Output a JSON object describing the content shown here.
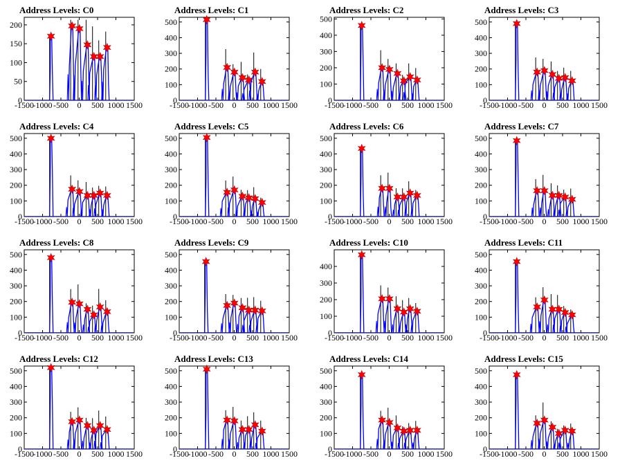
{
  "chart_data": [
    {
      "type": "histogram-peaks",
      "title": "Address Levels: C0",
      "xlim": [
        -1500,
        1500
      ],
      "ylim": [
        0,
        220
      ],
      "yticks": [
        0,
        50,
        100,
        150,
        200
      ],
      "xticks": [
        -1500,
        -1000,
        -500,
        0,
        500,
        1000,
        1500
      ],
      "peaks": [
        {
          "x": -770,
          "y": 170
        },
        {
          "x": -195,
          "y": 197
        },
        {
          "x": 5,
          "y": 190
        },
        {
          "x": 225,
          "y": 147
        },
        {
          "x": 400,
          "y": 116
        },
        {
          "x": 570,
          "y": 116
        },
        {
          "x": 760,
          "y": 140
        }
      ]
    },
    {
      "type": "histogram-peaks",
      "title": "Address Levels: C1",
      "xlim": [
        -1500,
        1500
      ],
      "ylim": [
        0,
        530
      ],
      "yticks": [
        0,
        100,
        200,
        300,
        400,
        500
      ],
      "xticks": [
        -1500,
        -1000,
        -500,
        0,
        500,
        1000,
        1500
      ],
      "peaks": [
        {
          "x": -750,
          "y": 515
        },
        {
          "x": -195,
          "y": 210
        },
        {
          "x": 5,
          "y": 180
        },
        {
          "x": 225,
          "y": 145
        },
        {
          "x": 400,
          "y": 130
        },
        {
          "x": 570,
          "y": 180
        },
        {
          "x": 760,
          "y": 120
        }
      ]
    },
    {
      "type": "histogram-peaks",
      "title": "Address Levels: C2",
      "xlim": [
        -1500,
        1500
      ],
      "ylim": [
        0,
        510
      ],
      "yticks": [
        0,
        100,
        200,
        300,
        400,
        500
      ],
      "xticks": [
        -1500,
        -1000,
        -500,
        0,
        500,
        1000,
        1500
      ],
      "peaks": [
        {
          "x": -750,
          "y": 460
        },
        {
          "x": -195,
          "y": 200
        },
        {
          "x": 5,
          "y": 190
        },
        {
          "x": 225,
          "y": 165
        },
        {
          "x": 400,
          "y": 120
        },
        {
          "x": 570,
          "y": 145
        },
        {
          "x": 760,
          "y": 125
        }
      ]
    },
    {
      "type": "histogram-peaks",
      "title": "Address Levels: C3",
      "xlim": [
        -1500,
        1500
      ],
      "ylim": [
        0,
        530
      ],
      "yticks": [
        0,
        100,
        200,
        300,
        400,
        500
      ],
      "xticks": [
        -1500,
        -1000,
        -500,
        0,
        500,
        1000,
        1500
      ],
      "peaks": [
        {
          "x": -750,
          "y": 490
        },
        {
          "x": -195,
          "y": 180
        },
        {
          "x": 5,
          "y": 190
        },
        {
          "x": 225,
          "y": 165
        },
        {
          "x": 400,
          "y": 140
        },
        {
          "x": 570,
          "y": 145
        },
        {
          "x": 760,
          "y": 125
        }
      ]
    },
    {
      "type": "histogram-peaks",
      "title": "Address Levels: C4",
      "xlim": [
        -1500,
        1500
      ],
      "ylim": [
        0,
        530
      ],
      "yticks": [
        0,
        100,
        200,
        300,
        400,
        500
      ],
      "xticks": [
        -1500,
        -1000,
        -500,
        0,
        500,
        1000,
        1500
      ],
      "peaks": [
        {
          "x": -770,
          "y": 500
        },
        {
          "x": -195,
          "y": 175
        },
        {
          "x": 5,
          "y": 160
        },
        {
          "x": 225,
          "y": 135
        },
        {
          "x": 400,
          "y": 135
        },
        {
          "x": 570,
          "y": 150
        },
        {
          "x": 760,
          "y": 135
        }
      ]
    },
    {
      "type": "histogram-peaks",
      "title": "Address Levels: C5",
      "xlim": [
        -1500,
        1500
      ],
      "ylim": [
        0,
        530
      ],
      "yticks": [
        0,
        100,
        200,
        300,
        400,
        500
      ],
      "xticks": [
        -1500,
        -1000,
        -500,
        0,
        500,
        1000,
        1500
      ],
      "peaks": [
        {
          "x": -750,
          "y": 505
        },
        {
          "x": -195,
          "y": 155
        },
        {
          "x": 5,
          "y": 170
        },
        {
          "x": 225,
          "y": 130
        },
        {
          "x": 400,
          "y": 120
        },
        {
          "x": 570,
          "y": 115
        },
        {
          "x": 760,
          "y": 90
        }
      ]
    },
    {
      "type": "histogram-peaks",
      "title": "Address Levels: C6",
      "xlim": [
        -1500,
        1500
      ],
      "ylim": [
        0,
        530
      ],
      "yticks": [
        0,
        100,
        200,
        300,
        400,
        500
      ],
      "xticks": [
        -1500,
        -1000,
        -500,
        0,
        500,
        1000,
        1500
      ],
      "peaks": [
        {
          "x": -750,
          "y": 435
        },
        {
          "x": -195,
          "y": 180
        },
        {
          "x": 5,
          "y": 180
        },
        {
          "x": 225,
          "y": 125
        },
        {
          "x": 400,
          "y": 125
        },
        {
          "x": 570,
          "y": 150
        },
        {
          "x": 760,
          "y": 135
        }
      ]
    },
    {
      "type": "histogram-peaks",
      "title": "Address Levels: C7",
      "xlim": [
        -1500,
        1500
      ],
      "ylim": [
        0,
        530
      ],
      "yticks": [
        0,
        100,
        200,
        300,
        400,
        500
      ],
      "xticks": [
        -1500,
        -1000,
        -500,
        0,
        500,
        1000,
        1500
      ],
      "peaks": [
        {
          "x": -750,
          "y": 485
        },
        {
          "x": -195,
          "y": 165
        },
        {
          "x": 5,
          "y": 165
        },
        {
          "x": 225,
          "y": 135
        },
        {
          "x": 400,
          "y": 135
        },
        {
          "x": 570,
          "y": 125
        },
        {
          "x": 760,
          "y": 110
        }
      ]
    },
    {
      "type": "histogram-peaks",
      "title": "Address Levels: C8",
      "xlim": [
        -1500,
        1500
      ],
      "ylim": [
        0,
        530
      ],
      "yticks": [
        0,
        100,
        200,
        300,
        400,
        500
      ],
      "xticks": [
        -1500,
        -1000,
        -500,
        0,
        500,
        1000,
        1500
      ],
      "peaks": [
        {
          "x": -770,
          "y": 480
        },
        {
          "x": -195,
          "y": 195
        },
        {
          "x": 5,
          "y": 185
        },
        {
          "x": 225,
          "y": 150
        },
        {
          "x": 400,
          "y": 115
        },
        {
          "x": 570,
          "y": 165
        },
        {
          "x": 760,
          "y": 135
        }
      ]
    },
    {
      "type": "histogram-peaks",
      "title": "Address Levels: C9",
      "xlim": [
        -1500,
        1500
      ],
      "ylim": [
        0,
        530
      ],
      "yticks": [
        0,
        100,
        200,
        300,
        400,
        500
      ],
      "xticks": [
        -1500,
        -1000,
        -500,
        0,
        500,
        1000,
        1500
      ],
      "peaks": [
        {
          "x": -770,
          "y": 455
        },
        {
          "x": -195,
          "y": 175
        },
        {
          "x": 5,
          "y": 190
        },
        {
          "x": 225,
          "y": 160
        },
        {
          "x": 400,
          "y": 145
        },
        {
          "x": 570,
          "y": 145
        },
        {
          "x": 760,
          "y": 140
        }
      ]
    },
    {
      "type": "histogram-peaks",
      "title": "Address Levels: C10",
      "xlim": [
        -1500,
        1500
      ],
      "ylim": [
        0,
        500
      ],
      "yticks": [
        0,
        100,
        200,
        300,
        400
      ],
      "xticks": [
        -1500,
        -1000,
        -500,
        0,
        500,
        1000,
        1500
      ],
      "peaks": [
        {
          "x": -750,
          "y": 470
        },
        {
          "x": -195,
          "y": 205
        },
        {
          "x": 5,
          "y": 205
        },
        {
          "x": 225,
          "y": 145
        },
        {
          "x": 400,
          "y": 125
        },
        {
          "x": 570,
          "y": 145
        },
        {
          "x": 760,
          "y": 130
        }
      ]
    },
    {
      "type": "histogram-peaks",
      "title": "Address Levels: C11",
      "xlim": [
        -1500,
        1500
      ],
      "ylim": [
        0,
        530
      ],
      "yticks": [
        0,
        100,
        200,
        300,
        400,
        500
      ],
      "xticks": [
        -1500,
        -1000,
        -500,
        0,
        500,
        1000,
        1500
      ],
      "peaks": [
        {
          "x": -750,
          "y": 455
        },
        {
          "x": -195,
          "y": 165
        },
        {
          "x": 5,
          "y": 210
        },
        {
          "x": 225,
          "y": 150
        },
        {
          "x": 400,
          "y": 150
        },
        {
          "x": 570,
          "y": 130
        },
        {
          "x": 760,
          "y": 115
        }
      ]
    },
    {
      "type": "histogram-peaks",
      "title": "Address Levels: C12",
      "xlim": [
        -1500,
        1500
      ],
      "ylim": [
        0,
        530
      ],
      "yticks": [
        0,
        100,
        200,
        300,
        400,
        500
      ],
      "xticks": [
        -1500,
        -1000,
        -500,
        0,
        500,
        1000,
        1500
      ],
      "peaks": [
        {
          "x": -770,
          "y": 520
        },
        {
          "x": -195,
          "y": 175
        },
        {
          "x": 5,
          "y": 185
        },
        {
          "x": 225,
          "y": 150
        },
        {
          "x": 400,
          "y": 120
        },
        {
          "x": 570,
          "y": 150
        },
        {
          "x": 760,
          "y": 125
        }
      ]
    },
    {
      "type": "histogram-peaks",
      "title": "Address Levels: C13",
      "xlim": [
        -1500,
        1500
      ],
      "ylim": [
        0,
        530
      ],
      "yticks": [
        0,
        100,
        200,
        300,
        400,
        500
      ],
      "xticks": [
        -1500,
        -1000,
        -500,
        0,
        500,
        1000,
        1500
      ],
      "peaks": [
        {
          "x": -750,
          "y": 510
        },
        {
          "x": -195,
          "y": 185
        },
        {
          "x": 5,
          "y": 180
        },
        {
          "x": 225,
          "y": 125
        },
        {
          "x": 400,
          "y": 125
        },
        {
          "x": 570,
          "y": 155
        },
        {
          "x": 760,
          "y": 115
        }
      ]
    },
    {
      "type": "histogram-peaks",
      "title": "Address Levels: C14",
      "xlim": [
        -1500,
        1500
      ],
      "ylim": [
        0,
        530
      ],
      "yticks": [
        0,
        100,
        200,
        300,
        400,
        500
      ],
      "xticks": [
        -1500,
        -1000,
        -500,
        0,
        500,
        1000,
        1500
      ],
      "peaks": [
        {
          "x": -750,
          "y": 475
        },
        {
          "x": -195,
          "y": 185
        },
        {
          "x": 5,
          "y": 170
        },
        {
          "x": 225,
          "y": 135
        },
        {
          "x": 400,
          "y": 115
        },
        {
          "x": 570,
          "y": 120
        },
        {
          "x": 760,
          "y": 120
        }
      ]
    },
    {
      "type": "histogram-peaks",
      "title": "Address Levels: C15",
      "xlim": [
        -1500,
        1500
      ],
      "ylim": [
        0,
        530
      ],
      "yticks": [
        0,
        100,
        200,
        300,
        400,
        500
      ],
      "xticks": [
        -1500,
        -1000,
        -500,
        0,
        500,
        1000,
        1500
      ],
      "peaks": [
        {
          "x": -750,
          "y": 475
        },
        {
          "x": -195,
          "y": 165
        },
        {
          "x": 5,
          "y": 185
        },
        {
          "x": 225,
          "y": 140
        },
        {
          "x": 400,
          "y": 100
        },
        {
          "x": 570,
          "y": 120
        },
        {
          "x": 760,
          "y": 115
        }
      ]
    }
  ],
  "colors": {
    "histogram": "#0000ff",
    "spike": "#000000",
    "marker": "#ff0000",
    "marker_edge": "#cc0000",
    "axis": "#000000"
  }
}
